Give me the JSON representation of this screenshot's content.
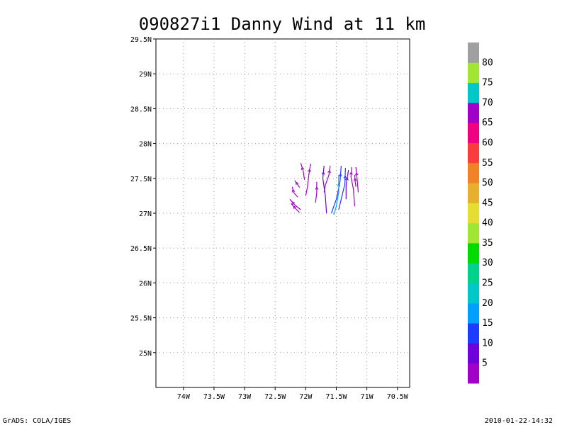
{
  "chart_data": {
    "type": "streamline",
    "title": "090827i1 Danny Wind at 11 km",
    "xlabel": "",
    "ylabel": "",
    "xlim": [
      -74.45,
      -70.3
    ],
    "ylim": [
      24.5,
      29.5
    ],
    "grid": true,
    "x_ticks": [
      -74,
      -73.5,
      -73,
      -72.5,
      -72,
      -71.5,
      -71,
      -70.5
    ],
    "x_tick_labels": [
      "74W",
      "73.5W",
      "73W",
      "72.5W",
      "72W",
      "71.5W",
      "71W",
      "70.5W"
    ],
    "y_ticks": [
      25,
      25.5,
      26,
      26.5,
      27,
      27.5,
      28,
      28.5,
      29,
      29.5
    ],
    "y_tick_labels": [
      "25N",
      "25.5N",
      "26N",
      "26.5N",
      "27N",
      "27.5N",
      "28N",
      "28.5N",
      "29N",
      "29.5N"
    ],
    "colorbar": {
      "labels": [
        "5",
        "10",
        "15",
        "20",
        "25",
        "30",
        "35",
        "40",
        "45",
        "50",
        "55",
        "60",
        "65",
        "70",
        "75",
        "80"
      ],
      "colors": [
        "#a000c8",
        "#6e00dc",
        "#1e3cff",
        "#00a0ff",
        "#00c8c8",
        "#00d28c",
        "#00dc00",
        "#a0e632",
        "#e6dc32",
        "#e6af2d",
        "#f08228",
        "#fa3c3c",
        "#f00082",
        "#a000c8",
        "#00c8c8",
        "#a0e632",
        "#a0a0a0"
      ]
    },
    "streamlines": [
      {
        "color": "#a000c8",
        "points": [
          [
            -72.08,
            27.72
          ],
          [
            -72.04,
            27.6
          ],
          [
            -72.02,
            27.48
          ]
        ]
      },
      {
        "color": "#a000c8",
        "points": [
          [
            -72.18,
            27.47
          ],
          [
            -72.14,
            27.42
          ],
          [
            -72.1,
            27.37
          ]
        ]
      },
      {
        "color": "#a000c8",
        "points": [
          [
            -72.22,
            27.38
          ],
          [
            -72.2,
            27.3
          ],
          [
            -72.13,
            27.23
          ]
        ]
      },
      {
        "color": "#a000c8",
        "points": [
          [
            -72.26,
            27.2
          ],
          [
            -72.18,
            27.12
          ],
          [
            -72.08,
            27.05
          ]
        ]
      },
      {
        "color": "#a000c8",
        "points": [
          [
            -72.24,
            27.14
          ],
          [
            -72.16,
            27.06
          ],
          [
            -72.1,
            27.01
          ]
        ]
      },
      {
        "color": "#a000c8",
        "points": [
          [
            -71.92,
            27.71
          ],
          [
            -71.95,
            27.55
          ],
          [
            -71.97,
            27.38
          ],
          [
            -72.0,
            27.25
          ]
        ]
      },
      {
        "color": "#a000c8",
        "points": [
          [
            -71.82,
            27.45
          ],
          [
            -71.82,
            27.3
          ],
          [
            -71.84,
            27.15
          ]
        ]
      },
      {
        "color": "#a000c8",
        "points": [
          [
            -71.6,
            27.68
          ],
          [
            -71.62,
            27.55
          ],
          [
            -71.68,
            27.4
          ],
          [
            -71.7,
            27.3
          ]
        ]
      },
      {
        "color": "#6e00dc",
        "points": [
          [
            -71.7,
            27.68
          ],
          [
            -71.72,
            27.5
          ],
          [
            -71.68,
            27.25
          ],
          [
            -71.66,
            27.0
          ]
        ]
      },
      {
        "color": "#1e3cff",
        "points": [
          [
            -71.42,
            27.68
          ],
          [
            -71.44,
            27.45
          ],
          [
            -71.5,
            27.2
          ],
          [
            -71.58,
            27.0
          ]
        ]
      },
      {
        "color": "#00a0ff",
        "points": [
          [
            -71.46,
            27.55
          ],
          [
            -71.46,
            27.3
          ],
          [
            -71.5,
            27.1
          ],
          [
            -71.54,
            26.98
          ]
        ]
      },
      {
        "color": "#1e3cff",
        "points": [
          [
            -71.35,
            27.65
          ],
          [
            -71.36,
            27.42
          ],
          [
            -71.42,
            27.2
          ],
          [
            -71.46,
            27.05
          ]
        ]
      },
      {
        "color": "#6e00dc",
        "points": [
          [
            -71.3,
            27.62
          ],
          [
            -71.34,
            27.4
          ],
          [
            -71.34,
            27.2
          ]
        ]
      },
      {
        "color": "#a000c8",
        "points": [
          [
            -71.25,
            27.66
          ],
          [
            -71.26,
            27.52
          ],
          [
            -71.22,
            27.35
          ],
          [
            -71.2,
            27.1
          ]
        ]
      },
      {
        "color": "#a000c8",
        "points": [
          [
            -71.18,
            27.66
          ],
          [
            -71.16,
            27.5
          ],
          [
            -71.14,
            27.3
          ]
        ]
      },
      {
        "color": "#a000c8",
        "points": [
          [
            -71.2,
            27.55
          ],
          [
            -71.19,
            27.45
          ],
          [
            -71.18,
            27.38
          ]
        ]
      }
    ]
  },
  "footer": {
    "left": "GrADS: COLA/IGES",
    "right": "2010-01-22-14:32"
  }
}
